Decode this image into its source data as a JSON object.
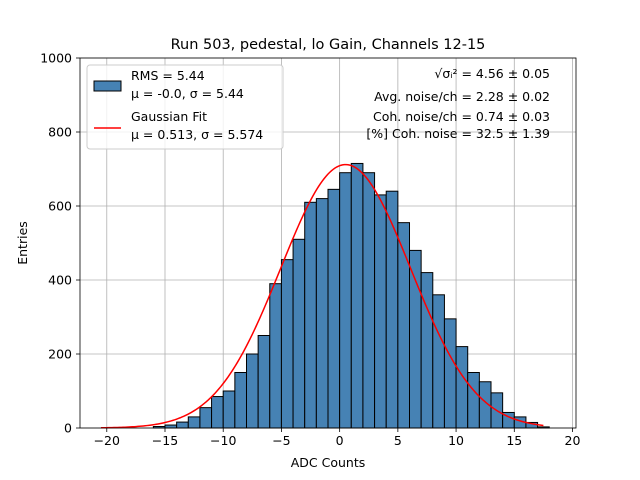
{
  "chart_data": {
    "type": "bar",
    "title": "Run 503, pedestal, lo Gain, Channels 12-15",
    "xlabel": "ADC Counts",
    "ylabel": "Entries",
    "xlim": [
      -22.3,
      20.3
    ],
    "ylim": [
      0,
      1000
    ],
    "xticks": [
      -20,
      -15,
      -10,
      -5,
      0,
      5,
      10,
      15,
      20
    ],
    "yticks": [
      0,
      200,
      400,
      600,
      800,
      1000
    ],
    "grid": true,
    "bin_width": 1,
    "bins": {
      "left_edges": [
        -16,
        -15,
        -14,
        -13,
        -12,
        -11,
        -10,
        -9,
        -8,
        -7,
        -6,
        -5,
        -4,
        -3,
        -2,
        -1,
        0,
        1,
        2,
        3,
        4,
        5,
        6,
        7,
        8,
        9,
        10,
        11,
        12,
        13,
        14,
        15,
        16,
        17
      ],
      "counts": [
        4,
        8,
        16,
        30,
        55,
        85,
        100,
        150,
        200,
        250,
        390,
        455,
        510,
        610,
        620,
        645,
        690,
        715,
        690,
        630,
        640,
        555,
        480,
        420,
        360,
        295,
        220,
        150,
        125,
        95,
        42,
        30,
        15,
        3
      ]
    },
    "fit": {
      "type": "gaussian",
      "mu": 0.513,
      "sigma": 5.574,
      "amplitude": 712,
      "x_range": [
        -20.5,
        17.5
      ]
    },
    "colors": {
      "bar_fill": "#4682b4",
      "bar_edge": "#000000",
      "fit_line": "#ff0000",
      "grid": "#b0b0b0"
    },
    "legend": {
      "placement": "top-left",
      "entries": [
        {
          "kind": "patch",
          "line1": "RMS = 5.44",
          "line2": "μ = -0.0, σ = 5.44"
        },
        {
          "kind": "line",
          "line1": "Gaussian Fit",
          "line2": "μ = 0.513, σ = 5.574"
        }
      ]
    },
    "annotations": {
      "placement": "top-right",
      "lines": [
        "√σᵢ² = 4.56 ± 0.05",
        "Avg. noise/ch = 2.28 ± 0.02",
        "Coh. noise/ch = 0.74 ± 0.03",
        "[%] Coh. noise = 32.5 ± 1.39"
      ]
    }
  }
}
